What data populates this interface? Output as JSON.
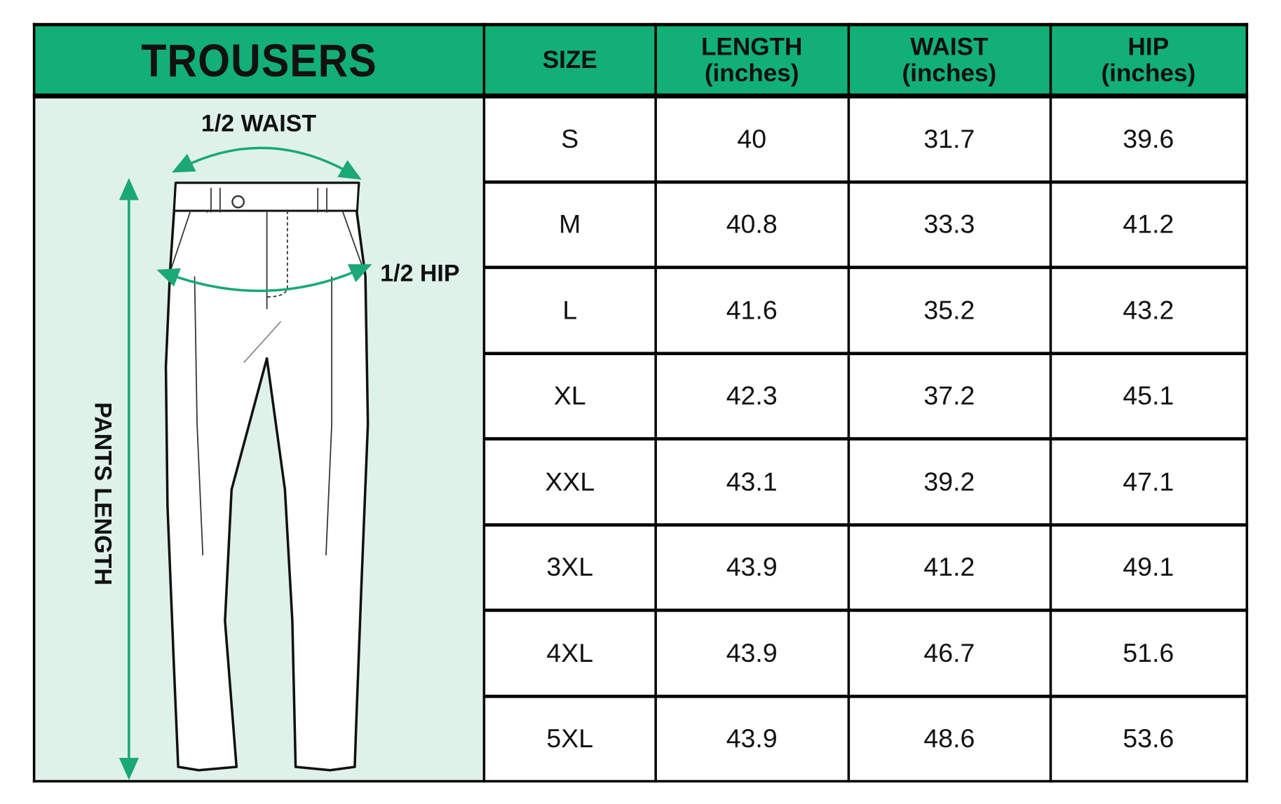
{
  "title": "TROUSERS",
  "columns": [
    {
      "main": "SIZE",
      "unit": ""
    },
    {
      "main": "LENGTH",
      "unit": "(inches)"
    },
    {
      "main": "WAIST",
      "unit": "(inches)"
    },
    {
      "main": "HIP",
      "unit": "(inches)"
    }
  ],
  "rows": [
    [
      "S",
      "40",
      "31.7",
      "39.6"
    ],
    [
      "M",
      "40.8",
      "33.3",
      "41.2"
    ],
    [
      "L",
      "41.6",
      "35.2",
      "43.2"
    ],
    [
      "XL",
      "42.3",
      "37.2",
      "45.1"
    ],
    [
      "XXL",
      "43.1",
      "39.2",
      "47.1"
    ],
    [
      "3XL",
      "43.9",
      "41.2",
      "49.1"
    ],
    [
      "4XL",
      "43.9",
      "46.7",
      "51.6"
    ],
    [
      "5XL",
      "43.9",
      "48.6",
      "53.6"
    ]
  ],
  "diagram": {
    "waist_label": "1/2  WAIST",
    "hip_label": "1/2  HIP",
    "length_label": "PANTS LENGTH"
  },
  "colors": {
    "header": "#12b077",
    "panel": "#dff2ea",
    "arrow": "#1aa874"
  }
}
